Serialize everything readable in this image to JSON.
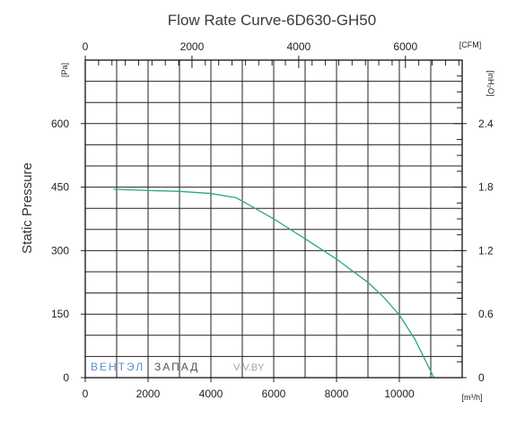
{
  "chart_data": {
    "type": "line",
    "title": "Flow Rate Curve-6D630-GH50",
    "ylabel": "Static Pressure",
    "x_bottom": {
      "unit": "[m³/h]",
      "range": [
        0,
        12000
      ],
      "ticks": [
        "0",
        "2000",
        "4000",
        "6000",
        "8000",
        "10000"
      ]
    },
    "x_top": {
      "unit": "[CFM]",
      "range": [
        0,
        7063
      ],
      "ticks": [
        "0",
        "2000",
        "4000",
        "6000"
      ]
    },
    "y_left": {
      "unit": "[Pa]",
      "range": [
        0,
        750
      ],
      "ticks": [
        "0",
        "150",
        "300",
        "450",
        "600"
      ]
    },
    "y_right": {
      "unit": "[inH₂O]",
      "range": [
        0,
        3.0
      ],
      "ticks": [
        "0",
        "0.6",
        "1.2",
        "1.8",
        "2.4"
      ]
    },
    "grid": true,
    "line_color": "#2aa876",
    "series": [
      {
        "x": [
          900,
          2000,
          3000,
          4000,
          4800,
          5000,
          6000,
          7000,
          8000,
          9000,
          9500,
          10000,
          10500,
          10900,
          11100
        ],
        "y": [
          445,
          442,
          440,
          435,
          425,
          417,
          375,
          328,
          280,
          225,
          190,
          148,
          90,
          30,
          0
        ]
      }
    ]
  },
  "watermark": {
    "brand_part1": "ВЕНТЭЛ",
    "brand_part2": "ЗАПАД",
    "site": "V-V.BY"
  }
}
